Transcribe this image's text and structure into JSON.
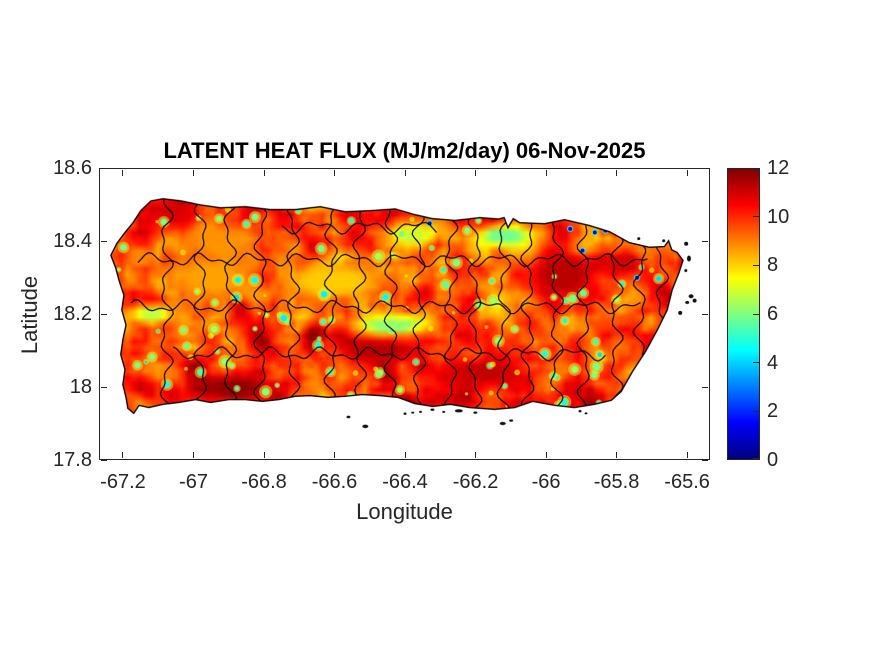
{
  "figure": {
    "background": "#ffffff",
    "kind": "MATLAB-style geographic heatmap figure"
  },
  "chart_data": {
    "type": "heatmap",
    "title": "LATENT HEAT FLUX (MJ/m2/day) 06-Nov-2025",
    "xlabel": "Longitude",
    "ylabel": "Latitude",
    "region": "Puerto Rico",
    "xlim": [
      -67.268,
      -65.535
    ],
    "ylim": [
      17.8,
      18.6
    ],
    "grid": false,
    "xticks": {
      "values": [
        -67.2,
        -67.0,
        -66.8,
        -66.6,
        -66.4,
        -66.2,
        -66.0,
        -65.8,
        -65.6
      ],
      "labels": [
        "-67.2",
        "-67",
        "-66.8",
        "-66.6",
        "-66.4",
        "-66.2",
        "-66",
        "-65.8",
        "-65.6"
      ]
    },
    "yticks": {
      "values": [
        18.6,
        18.4,
        18.2,
        18.0,
        17.8
      ],
      "labels": [
        "18.6",
        "18.4",
        "18.2",
        "18",
        "17.8"
      ]
    },
    "colorbar": {
      "min": 0,
      "max": 12,
      "tick_values": [
        0,
        2,
        4,
        6,
        8,
        10,
        12
      ],
      "tick_labels": [
        "0",
        "2",
        "4",
        "6",
        "8",
        "10",
        "12"
      ],
      "colormap": "jet",
      "gradient_stops": [
        "#000080",
        "#0000ff",
        "#0080ff",
        "#00ffff",
        "#80ff80",
        "#ffff00",
        "#ff8000",
        "#ff0000",
        "#800000"
      ],
      "position": "right"
    },
    "field_summary": {
      "typical_value_range": [
        8.5,
        11.5
      ],
      "low_speck_value_range": [
        4.0,
        6.8
      ],
      "low_speck_count": 85,
      "yellow_speck_count": 28,
      "units": "MJ/m2/day"
    },
    "features": [
      {
        "kind": "high",
        "lon": -67.05,
        "lat": 18.47,
        "rx": 0.07,
        "ry": 0.035,
        "value": 11.0
      },
      {
        "kind": "high",
        "lon": -66.89,
        "lat": 17.995,
        "rx": 0.1,
        "ry": 0.035,
        "value": 11.8
      },
      {
        "kind": "high",
        "lon": -66.47,
        "lat": 18.1,
        "rx": 0.1,
        "ry": 0.035,
        "value": 11.4
      },
      {
        "kind": "high",
        "lon": -66.18,
        "lat": 18.04,
        "rx": 0.1,
        "ry": 0.035,
        "value": 11.2
      },
      {
        "kind": "high",
        "lon": -65.95,
        "lat": 18.31,
        "rx": 0.1,
        "ry": 0.07,
        "value": 11.3
      },
      {
        "kind": "high",
        "lon": -65.77,
        "lat": 18.34,
        "rx": 0.05,
        "ry": 0.04,
        "value": 11.0
      },
      {
        "kind": "high",
        "lon": -66.55,
        "lat": 18.47,
        "rx": 0.05,
        "ry": 0.02,
        "value": 10.8
      },
      {
        "kind": "mid",
        "lon": -66.93,
        "lat": 18.4,
        "rx": 0.1,
        "ry": 0.05,
        "value": 8.8
      },
      {
        "kind": "mid",
        "lon": -66.95,
        "lat": 18.3,
        "rx": 0.12,
        "ry": 0.06,
        "value": 8.6
      },
      {
        "kind": "mid",
        "lon": -66.6,
        "lat": 18.29,
        "rx": 0.14,
        "ry": 0.05,
        "value": 8.1
      },
      {
        "kind": "mid",
        "lon": -66.07,
        "lat": 18.38,
        "rx": 0.05,
        "ry": 0.03,
        "value": 8.5
      },
      {
        "kind": "low",
        "lon": -66.38,
        "lat": 18.42,
        "rx": 0.07,
        "ry": 0.028,
        "value": 6.8
      },
      {
        "kind": "low",
        "lon": -66.12,
        "lat": 18.415,
        "rx": 0.075,
        "ry": 0.028,
        "value": 5.8
      },
      {
        "kind": "low",
        "lon": -66.44,
        "lat": 18.17,
        "rx": 0.1,
        "ry": 0.026,
        "value": 6.2
      },
      {
        "kind": "low",
        "lon": -67.12,
        "lat": 18.2,
        "rx": 0.06,
        "ry": 0.024,
        "value": 6.8
      }
    ],
    "coastal_dark_specks": [
      [
        -65.93,
        18.435
      ],
      [
        -65.86,
        18.425
      ],
      [
        -65.83,
        18.43
      ],
      [
        -66.33,
        18.45
      ],
      [
        -65.895,
        18.375
      ],
      [
        -65.74,
        18.3
      ]
    ],
    "region_outline_lonlat": [
      [
        -67.237,
        18.362
      ],
      [
        -67.22,
        18.395
      ],
      [
        -67.197,
        18.425
      ],
      [
        -67.174,
        18.452
      ],
      [
        -67.152,
        18.485
      ],
      [
        -67.123,
        18.512
      ],
      [
        -67.089,
        18.518
      ],
      [
        -67.038,
        18.512
      ],
      [
        -66.982,
        18.501
      ],
      [
        -66.925,
        18.493
      ],
      [
        -66.854,
        18.496
      ],
      [
        -66.783,
        18.488
      ],
      [
        -66.712,
        18.488
      ],
      [
        -66.641,
        18.496
      ],
      [
        -66.57,
        18.482
      ],
      [
        -66.499,
        18.485
      ],
      [
        -66.428,
        18.49
      ],
      [
        -66.372,
        18.474
      ],
      [
        -66.321,
        18.463
      ],
      [
        -66.258,
        18.458
      ],
      [
        -66.187,
        18.466
      ],
      [
        -66.135,
        18.462
      ],
      [
        -66.118,
        18.466
      ],
      [
        -66.107,
        18.438
      ],
      [
        -66.092,
        18.463
      ],
      [
        -66.074,
        18.452
      ],
      [
        -66.003,
        18.449
      ],
      [
        -65.946,
        18.46
      ],
      [
        -65.875,
        18.444
      ],
      [
        -65.818,
        18.427
      ],
      [
        -65.762,
        18.397
      ],
      [
        -65.705,
        18.384
      ],
      [
        -65.662,
        18.386
      ],
      [
        -65.65,
        18.402
      ],
      [
        -65.641,
        18.377
      ],
      [
        -65.626,
        18.37
      ],
      [
        -65.609,
        18.348
      ],
      [
        -65.62,
        18.315
      ],
      [
        -65.64,
        18.266
      ],
      [
        -65.654,
        18.211
      ],
      [
        -65.682,
        18.156
      ],
      [
        -65.716,
        18.096
      ],
      [
        -65.753,
        18.041
      ],
      [
        -65.785,
        17.986
      ],
      [
        -65.813,
        17.962
      ],
      [
        -65.861,
        17.951
      ],
      [
        -65.918,
        17.942
      ],
      [
        -65.974,
        17.948
      ],
      [
        -66.037,
        17.959
      ],
      [
        -66.088,
        17.942
      ],
      [
        -66.145,
        17.937
      ],
      [
        -66.216,
        17.942
      ],
      [
        -66.272,
        17.951
      ],
      [
        -66.321,
        17.945
      ],
      [
        -66.372,
        17.953
      ],
      [
        -66.42,
        17.97
      ],
      [
        -66.471,
        17.975
      ],
      [
        -66.522,
        17.978
      ],
      [
        -66.57,
        17.973
      ],
      [
        -66.619,
        17.97
      ],
      [
        -66.67,
        17.975
      ],
      [
        -66.712,
        17.973
      ],
      [
        -66.76,
        17.964
      ],
      [
        -66.806,
        17.959
      ],
      [
        -66.854,
        17.964
      ],
      [
        -66.902,
        17.964
      ],
      [
        -66.953,
        17.956
      ],
      [
        -66.996,
        17.964
      ],
      [
        -67.044,
        17.956
      ],
      [
        -67.089,
        17.951
      ],
      [
        -67.129,
        17.942
      ],
      [
        -67.157,
        17.948
      ],
      [
        -67.172,
        17.926
      ],
      [
        -67.189,
        17.94
      ],
      [
        -67.194,
        17.97
      ],
      [
        -67.203,
        18.005
      ],
      [
        -67.197,
        18.047
      ],
      [
        -67.209,
        18.088
      ],
      [
        -67.203,
        18.129
      ],
      [
        -67.194,
        18.17
      ],
      [
        -67.206,
        18.211
      ],
      [
        -67.2,
        18.252
      ],
      [
        -67.214,
        18.293
      ],
      [
        -67.223,
        18.326
      ]
    ],
    "islets_lonlat_sizepx": [
      [
        -65.6,
        18.394,
        2,
        2
      ],
      [
        -65.592,
        18.353,
        2,
        3
      ],
      [
        -65.601,
        18.32,
        1.5,
        1.5
      ],
      [
        -65.586,
        18.249,
        2.5,
        2
      ],
      [
        -65.576,
        18.237,
        2,
        2
      ],
      [
        -65.597,
        18.232,
        2,
        1.5
      ],
      [
        -65.617,
        18.203,
        2,
        2
      ],
      [
        -65.735,
        18.408,
        1.5,
        1.5
      ],
      [
        -65.664,
        18.402,
        1.5,
        1.5
      ],
      [
        -66.513,
        17.89,
        3,
        1.8
      ],
      [
        -66.561,
        17.916,
        2,
        1.3
      ],
      [
        -66.4,
        17.925,
        1.5,
        1.2
      ],
      [
        -66.378,
        17.928,
        1.5,
        1
      ],
      [
        -66.356,
        17.93,
        1.5,
        1
      ],
      [
        -66.322,
        17.936,
        2,
        1.2
      ],
      [
        -66.29,
        17.93,
        1.5,
        1
      ],
      [
        -66.247,
        17.933,
        4,
        1.6
      ],
      [
        -66.2,
        17.928,
        2,
        1.2
      ],
      [
        -66.122,
        17.898,
        3,
        1.6
      ],
      [
        -66.098,
        17.906,
        2,
        1.2
      ],
      [
        -65.902,
        17.932,
        1.5,
        1.2
      ],
      [
        -65.885,
        17.926,
        1.5,
        1
      ]
    ],
    "municipal_boundaries": {
      "line_color": "#000000",
      "vertical_lons": [
        -67.08,
        -66.98,
        -66.9,
        -66.81,
        -66.72,
        -66.61,
        -66.53,
        -66.44,
        -66.36,
        -66.27,
        -66.2,
        -66.12,
        -66.05,
        -65.97,
        -65.89,
        -65.8,
        -65.73,
        -65.67
      ],
      "horizontal_bands": [
        {
          "lat": 18.44,
          "lon_range": [
            -66.75,
            -66.3
          ]
        },
        {
          "lat": 18.35,
          "lon_range": [
            -67.16,
            -65.7
          ]
        },
        {
          "lat": 18.22,
          "lon_range": [
            -67.18,
            -65.72
          ]
        },
        {
          "lat": 18.09,
          "lon_range": [
            -67.06,
            -65.82
          ]
        }
      ]
    }
  }
}
